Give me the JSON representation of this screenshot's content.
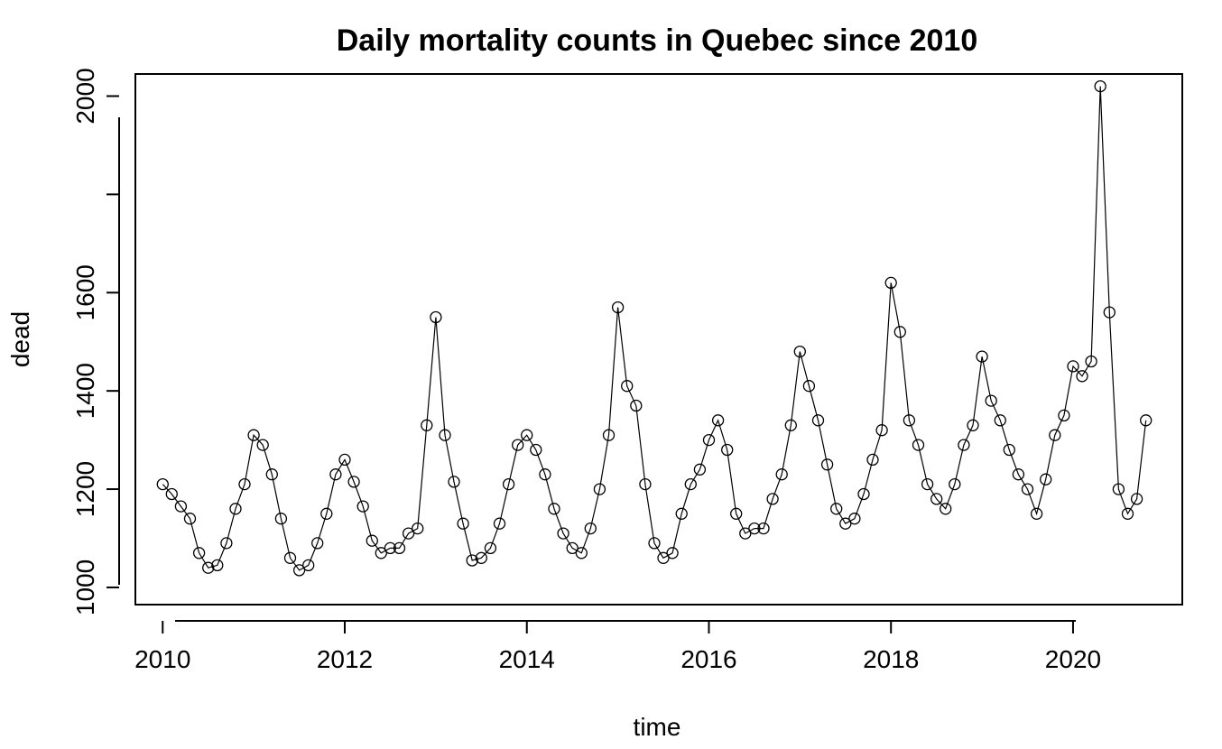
{
  "chart_data": {
    "type": "line",
    "title": "Daily mortality counts in Quebec since 2010",
    "xlabel": "time",
    "ylabel": "dead",
    "xlim": [
      2009.7,
      2021.2
    ],
    "ylim": [
      965,
      2045
    ],
    "x_ticks": [
      2010,
      2012,
      2014,
      2016,
      2018,
      2020
    ],
    "y_ticks": [
      1000,
      1200,
      1400,
      1600,
      2000
    ],
    "y_tick_labels": [
      "1000",
      "1200",
      "1400",
      "1600",
      "2000"
    ],
    "x_tick_labels": [
      "2010",
      "2012",
      "2014",
      "2016",
      "2018",
      "2020"
    ],
    "grid": false,
    "markers": "open-circle",
    "series": [
      {
        "x": [
          2010.0,
          2010.1,
          2010.2,
          2010.3,
          2010.4,
          2010.5,
          2010.6,
          2010.7,
          2010.8,
          2010.9,
          2011.0,
          2011.1,
          2011.2,
          2011.3,
          2011.4,
          2011.5,
          2011.6,
          2011.7,
          2011.8,
          2011.9,
          2012.0,
          2012.1,
          2012.2,
          2012.3,
          2012.4,
          2012.5,
          2012.6,
          2012.7,
          2012.8,
          2012.9,
          2013.0,
          2013.1,
          2013.2,
          2013.3,
          2013.4,
          2013.5,
          2013.6,
          2013.7,
          2013.8,
          2013.9,
          2014.0,
          2014.1,
          2014.2,
          2014.3,
          2014.4,
          2014.5,
          2014.6,
          2014.7,
          2014.8,
          2014.9,
          2015.0,
          2015.1,
          2015.2,
          2015.3,
          2015.4,
          2015.5,
          2015.6,
          2015.7,
          2015.8,
          2015.9,
          2016.0,
          2016.1,
          2016.2,
          2016.3,
          2016.4,
          2016.5,
          2016.6,
          2016.7,
          2016.8,
          2016.9,
          2017.0,
          2017.1,
          2017.2,
          2017.3,
          2017.4,
          2017.5,
          2017.6,
          2017.7,
          2017.8,
          2017.9,
          2018.0,
          2018.1,
          2018.2,
          2018.3,
          2018.4,
          2018.5,
          2018.6,
          2018.7,
          2018.8,
          2018.9,
          2019.0,
          2019.1,
          2019.2,
          2019.3,
          2019.4,
          2019.5,
          2019.6,
          2019.7,
          2019.8,
          2019.9,
          2020.0,
          2020.1,
          2020.2,
          2020.3,
          2020.4,
          2020.5,
          2020.6,
          2020.7,
          2020.8
        ],
        "values": [
          1210,
          1190,
          1165,
          1140,
          1070,
          1040,
          1045,
          1090,
          1160,
          1210,
          1310,
          1290,
          1230,
          1140,
          1060,
          1035,
          1045,
          1090,
          1150,
          1230,
          1260,
          1215,
          1165,
          1095,
          1070,
          1080,
          1080,
          1110,
          1120,
          1330,
          1550,
          1310,
          1215,
          1130,
          1055,
          1060,
          1080,
          1130,
          1210,
          1290,
          1310,
          1280,
          1230,
          1160,
          1110,
          1080,
          1070,
          1120,
          1200,
          1310,
          1570,
          1410,
          1370,
          1210,
          1090,
          1060,
          1070,
          1150,
          1210,
          1240,
          1300,
          1340,
          1280,
          1150,
          1110,
          1120,
          1120,
          1180,
          1230,
          1330,
          1480,
          1410,
          1340,
          1250,
          1160,
          1130,
          1140,
          1190,
          1260,
          1320,
          1620,
          1520,
          1340,
          1290,
          1210,
          1180,
          1160,
          1210,
          1290,
          1330,
          1470,
          1380,
          1340,
          1280,
          1230,
          1200,
          1150,
          1220,
          1310,
          1350,
          1450,
          1430,
          1460,
          2020,
          1560,
          1200,
          1150,
          1180,
          1340
        ]
      }
    ]
  }
}
